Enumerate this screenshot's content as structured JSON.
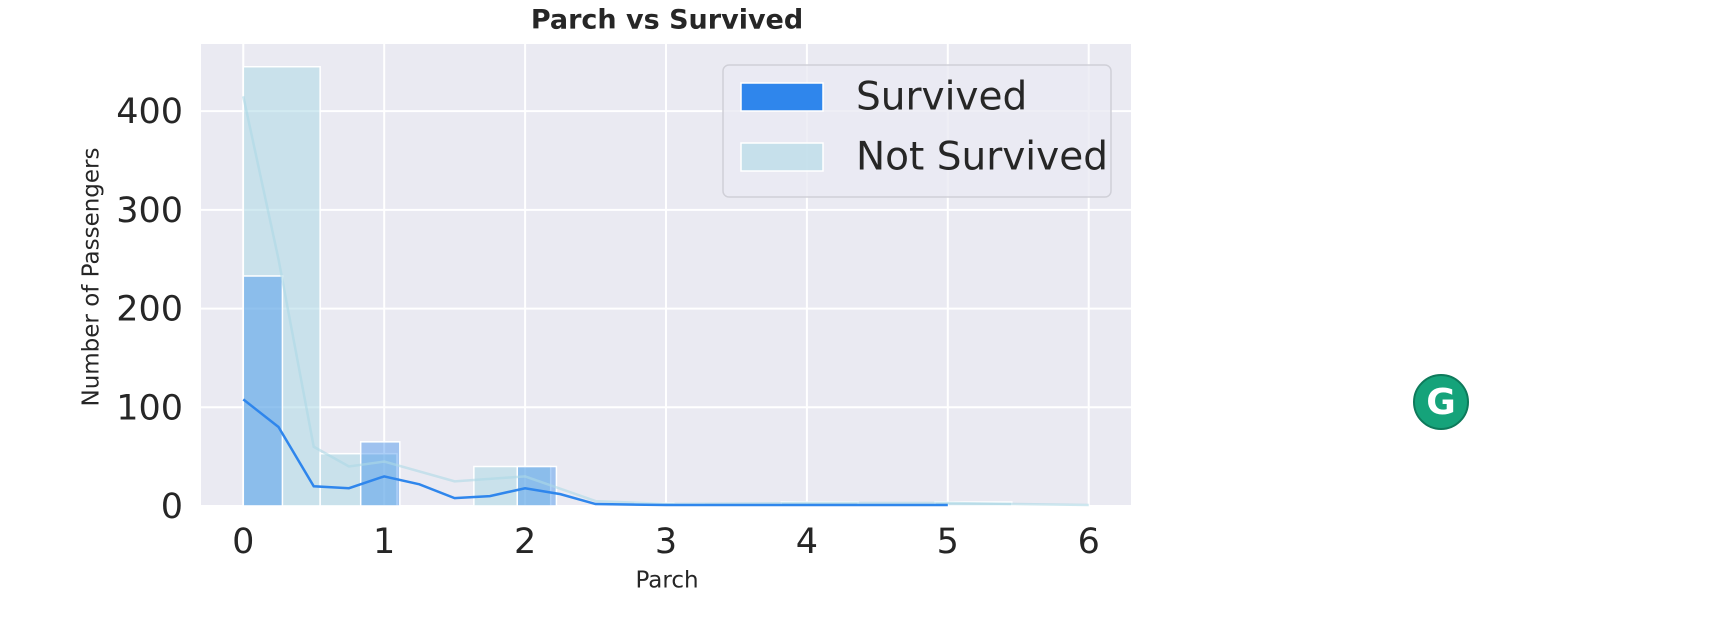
{
  "chart_data": {
    "type": "histogram",
    "title": "Parch vs Survived",
    "xlabel": "Parch",
    "ylabel": "Number of Passengers",
    "xlim": [
      -0.3,
      6.3
    ],
    "ylim": [
      0,
      468
    ],
    "xticks": [
      0,
      1,
      2,
      3,
      4,
      5,
      6
    ],
    "yticks": [
      0,
      100,
      200,
      300,
      400
    ],
    "grid": true,
    "legend": "upper right",
    "series": [
      {
        "name": "Survived",
        "color": "#2f86ec",
        "bins": [
          0,
          0.2778,
          0.5556,
          0.8333,
          1.1111,
          1.3889,
          1.6667,
          1.9444,
          2.2222,
          2.5,
          2.7778,
          3.0556,
          3.3333,
          3.6111,
          3.8889,
          4.1667,
          4.4444,
          4.7222,
          5
        ],
        "values": [
          233,
          0,
          0,
          65,
          0,
          0,
          0,
          40,
          0,
          0,
          3,
          0,
          0,
          0,
          0,
          0,
          0,
          1
        ],
        "kde_x": [
          0,
          0.25,
          0.5,
          0.75,
          1,
          1.25,
          1.5,
          1.75,
          2,
          2.25,
          2.5,
          3,
          4,
          5
        ],
        "kde_y": [
          108,
          80,
          20,
          18,
          30,
          22,
          8,
          10,
          18,
          12,
          2,
          1,
          1,
          1
        ]
      },
      {
        "name": "Not Survived",
        "color": "#add8e6",
        "bins": [
          0,
          0.5455,
          1.0909,
          1.6364,
          2.1818,
          2.7273,
          3.2727,
          3.8182,
          4.3636,
          4.9091,
          5.4545,
          6
        ],
        "values": [
          445,
          53,
          0,
          40,
          0,
          2,
          0,
          4,
          0,
          4,
          1
        ],
        "kde_x": [
          0,
          0.25,
          0.5,
          0.75,
          1,
          1.5,
          2,
          2.5,
          3,
          4,
          5,
          6
        ],
        "kde_y": [
          415,
          250,
          60,
          40,
          45,
          25,
          30,
          5,
          2,
          3,
          3,
          1
        ]
      }
    ]
  }
}
